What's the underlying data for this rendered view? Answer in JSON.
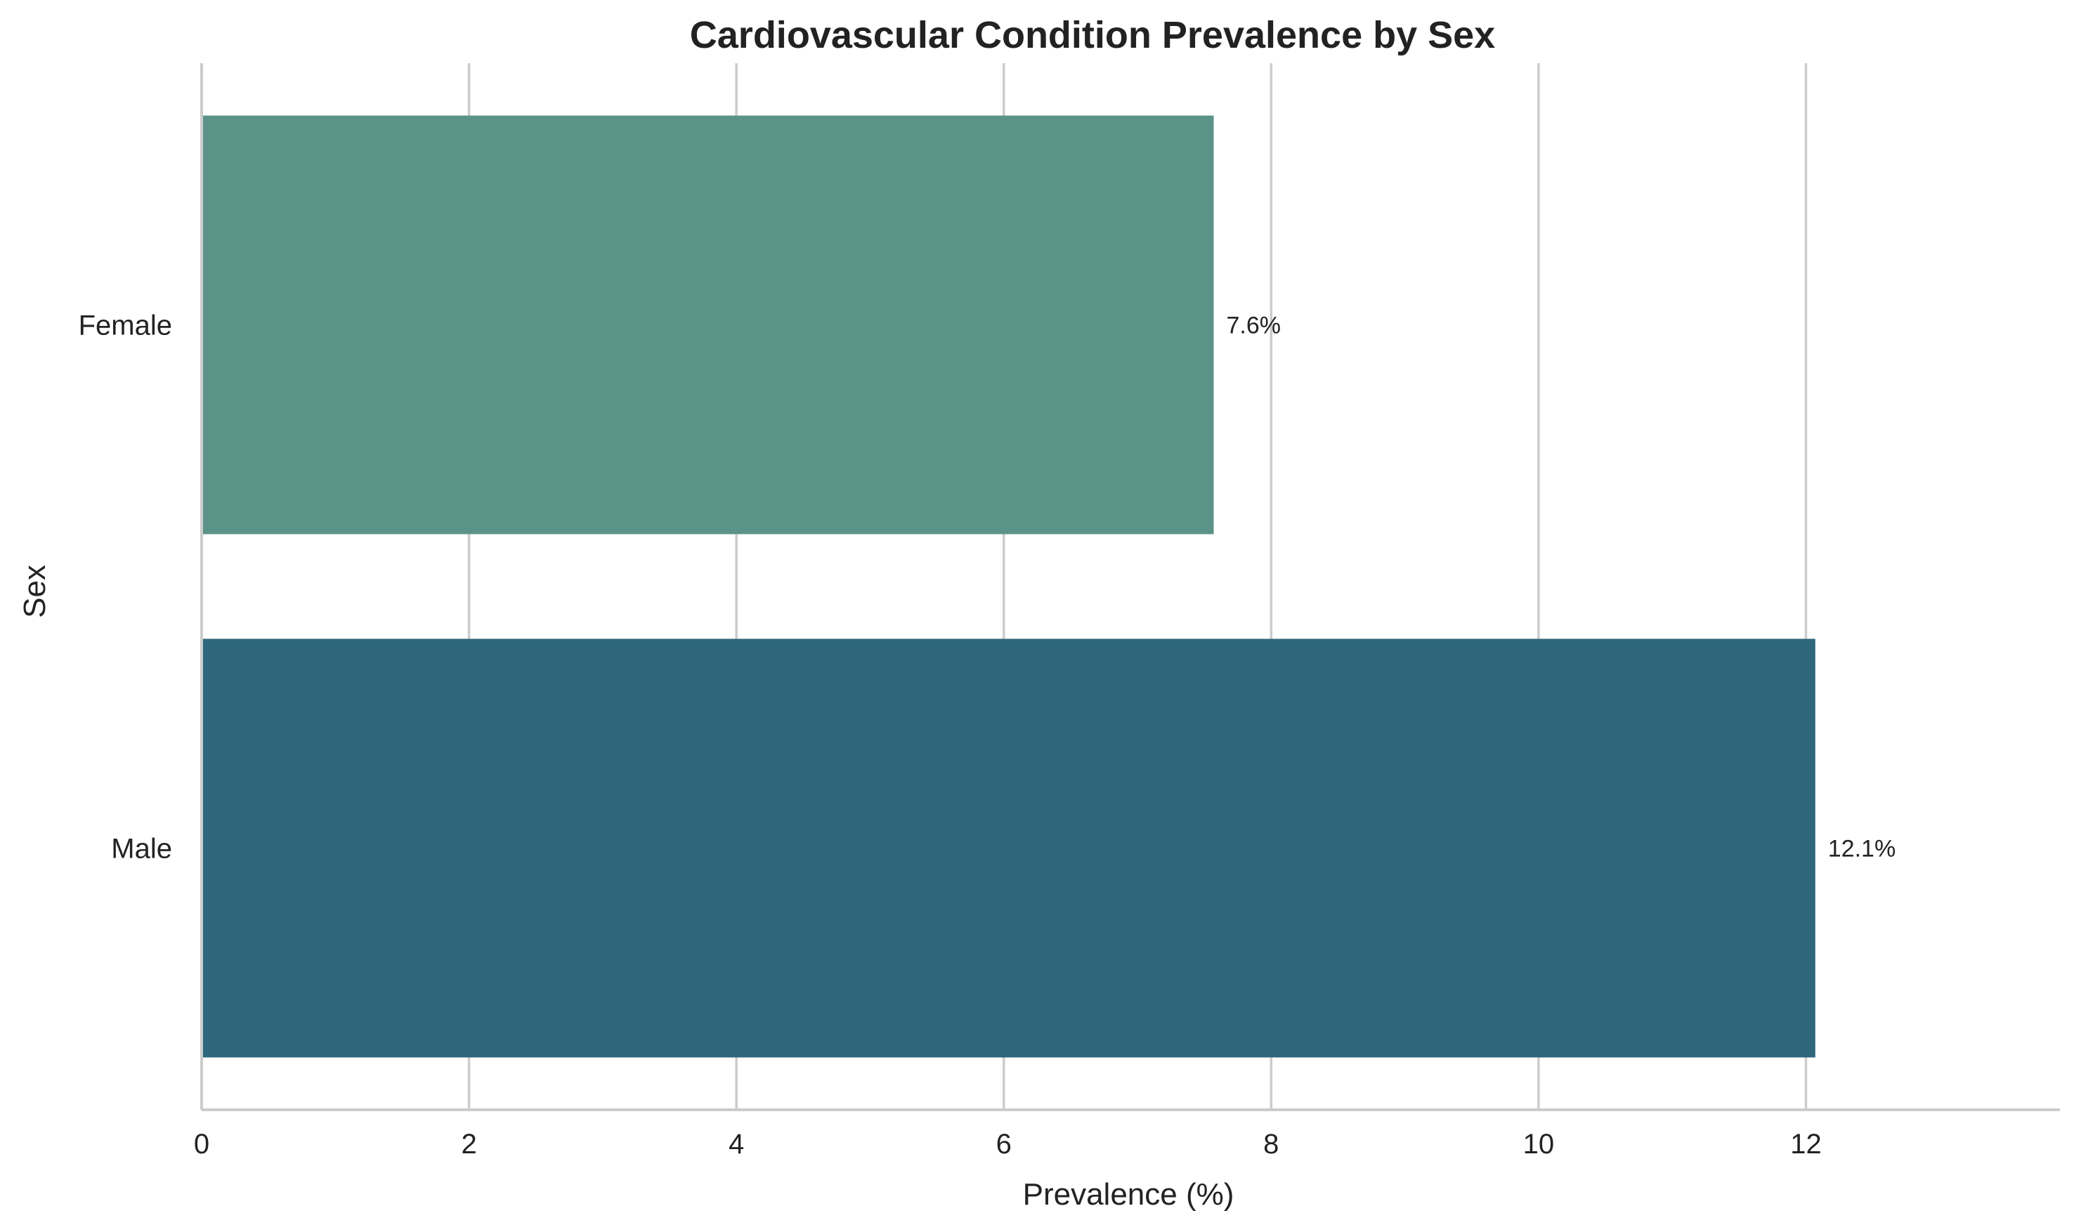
{
  "chart_data": {
    "type": "bar",
    "orientation": "horizontal",
    "title": "Cardiovascular Condition Prevalence by Sex",
    "xlabel": "Prevalence (%)",
    "ylabel": "Sex",
    "categories": [
      "Female",
      "Male"
    ],
    "values": [
      7.57,
      12.07
    ],
    "data_labels": [
      "7.6%",
      "12.1%"
    ],
    "colors": [
      "#5c9389",
      "#2e677c"
    ],
    "xlim": [
      0,
      13.9
    ],
    "xticks": [
      0,
      2,
      4,
      6,
      8,
      10,
      12
    ],
    "xtick_labels": [
      "0",
      "2",
      "4",
      "6",
      "8",
      "10",
      "12"
    ],
    "grid": "vertical",
    "legend": "none"
  }
}
